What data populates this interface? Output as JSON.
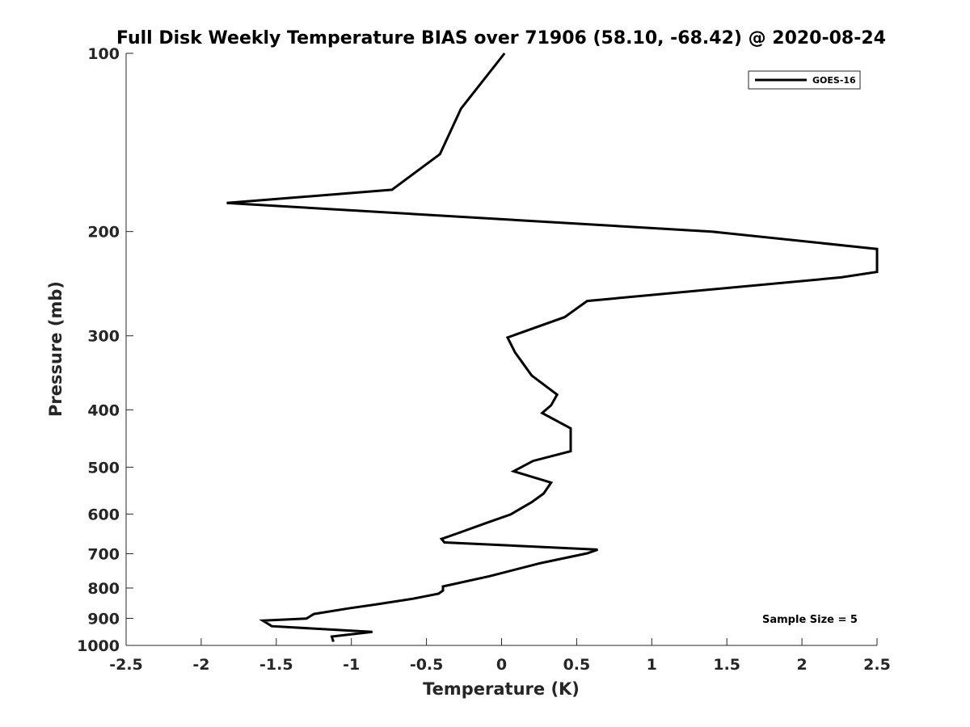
{
  "chart_data": {
    "type": "line",
    "title": "Full Disk Weekly Temperature BIAS over 71906 (58.10, -68.42) @ 2020-08-24",
    "xlabel": "Temperature (K)",
    "ylabel": "Pressure (mb)",
    "xlim": [
      -2.5,
      2.5
    ],
    "ylim": [
      1000,
      100
    ],
    "y_scale": "log",
    "y_reversed": true,
    "grid": false,
    "xticks": [
      -2.5,
      -2,
      -1.5,
      -1,
      -0.5,
      0,
      0.5,
      1,
      1.5,
      2,
      2.5
    ],
    "xtick_labels": [
      "-2.5",
      "-2",
      "-1.5",
      "-1",
      "-0.5",
      "0",
      "0.5",
      "1",
      "1.5",
      "2",
      "2.5"
    ],
    "yticks": [
      100,
      200,
      300,
      400,
      500,
      600,
      700,
      800,
      900,
      1000
    ],
    "ytick_labels": [
      "100",
      "200",
      "300",
      "400",
      "500",
      "600",
      "700",
      "800",
      "900",
      "1000"
    ],
    "legend_position": "top-right",
    "annotation": "Sample Size = 5",
    "series": [
      {
        "name": "GOES-16",
        "color": "#000000",
        "x": [
          0.02,
          -0.27,
          -0.41,
          -0.73,
          -1.83,
          1.4,
          2.5,
          2.5,
          2.26,
          0.57,
          0.42,
          0.04,
          0.09,
          0.2,
          0.37,
          0.33,
          0.27,
          0.46,
          0.46,
          0.21,
          0.08,
          0.33,
          0.28,
          0.2,
          0.06,
          -0.1,
          -0.28,
          -0.4,
          -0.38,
          0.64,
          0.57,
          0.26,
          -0.08,
          -0.39,
          -0.39,
          -0.42,
          -0.59,
          -0.84,
          -1.02,
          -1.25,
          -1.3,
          -1.59,
          -1.53,
          -0.86,
          -1.13,
          -1.12
        ],
        "y": [
          100,
          124,
          148,
          170,
          179,
          200,
          214,
          234,
          239,
          262,
          279,
          302,
          320,
          350,
          377,
          393,
          405,
          430,
          470,
          488,
          508,
          531,
          554,
          573,
          601,
          621,
          645,
          661,
          670,
          689,
          699,
          726,
          764,
          795,
          808,
          818,
          834,
          853,
          866,
          885,
          901,
          908,
          928,
          949,
          966,
          986
        ]
      }
    ]
  }
}
